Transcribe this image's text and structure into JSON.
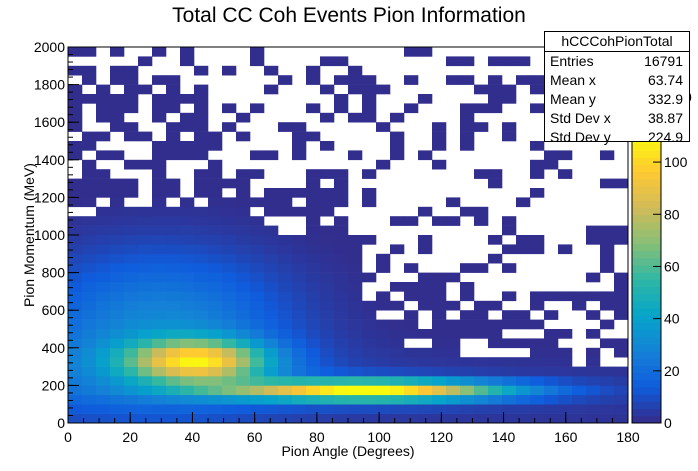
{
  "chart_data": {
    "type": "heatmap",
    "title": "Total CC Coh Events Pion Information",
    "xlabel": "Pion Angle (Degrees)",
    "ylabel": "Pion Momentum (MeV)",
    "xlim": [
      0,
      180
    ],
    "ylim": [
      0,
      2000
    ],
    "zlim": [
      0,
      110
    ],
    "bin_width_x": 4.5,
    "bin_width_y": 50,
    "x_ticks": [
      "0",
      "20",
      "40",
      "60",
      "80",
      "100",
      "120",
      "140",
      "160",
      "180"
    ],
    "y_ticks": [
      "0",
      "200",
      "400",
      "600",
      "800",
      "1000",
      "1200",
      "1400",
      "1600",
      "1800",
      "2000"
    ],
    "z_ticks": [
      "0",
      "20",
      "40",
      "60",
      "80",
      "100"
    ],
    "colormap": [
      "#352a87",
      "#0f5cdd",
      "#1481d6",
      "#06a4ca",
      "#2eb7a4",
      "#87bf77",
      "#d1bb59",
      "#fec832",
      "#f9fb0e"
    ],
    "grid": false,
    "legend": "colorbar right",
    "peak": {
      "x": 97,
      "y": 175,
      "value": 105
    },
    "description_of_distribution": null,
    "stats": {
      "name": "hCCCohPionTotal",
      "entries_label": "Entries",
      "entries": "16791",
      "meanx_label": "Mean x",
      "meanx": "63.74",
      "meany_label": "Mean y",
      "meany": "332.9",
      "stdx_label": "Std Dev x",
      "stdx": "38.87",
      "stdy_label": "Std Dev y",
      "stdy": "224.9"
    },
    "overflow_digit": "0"
  }
}
